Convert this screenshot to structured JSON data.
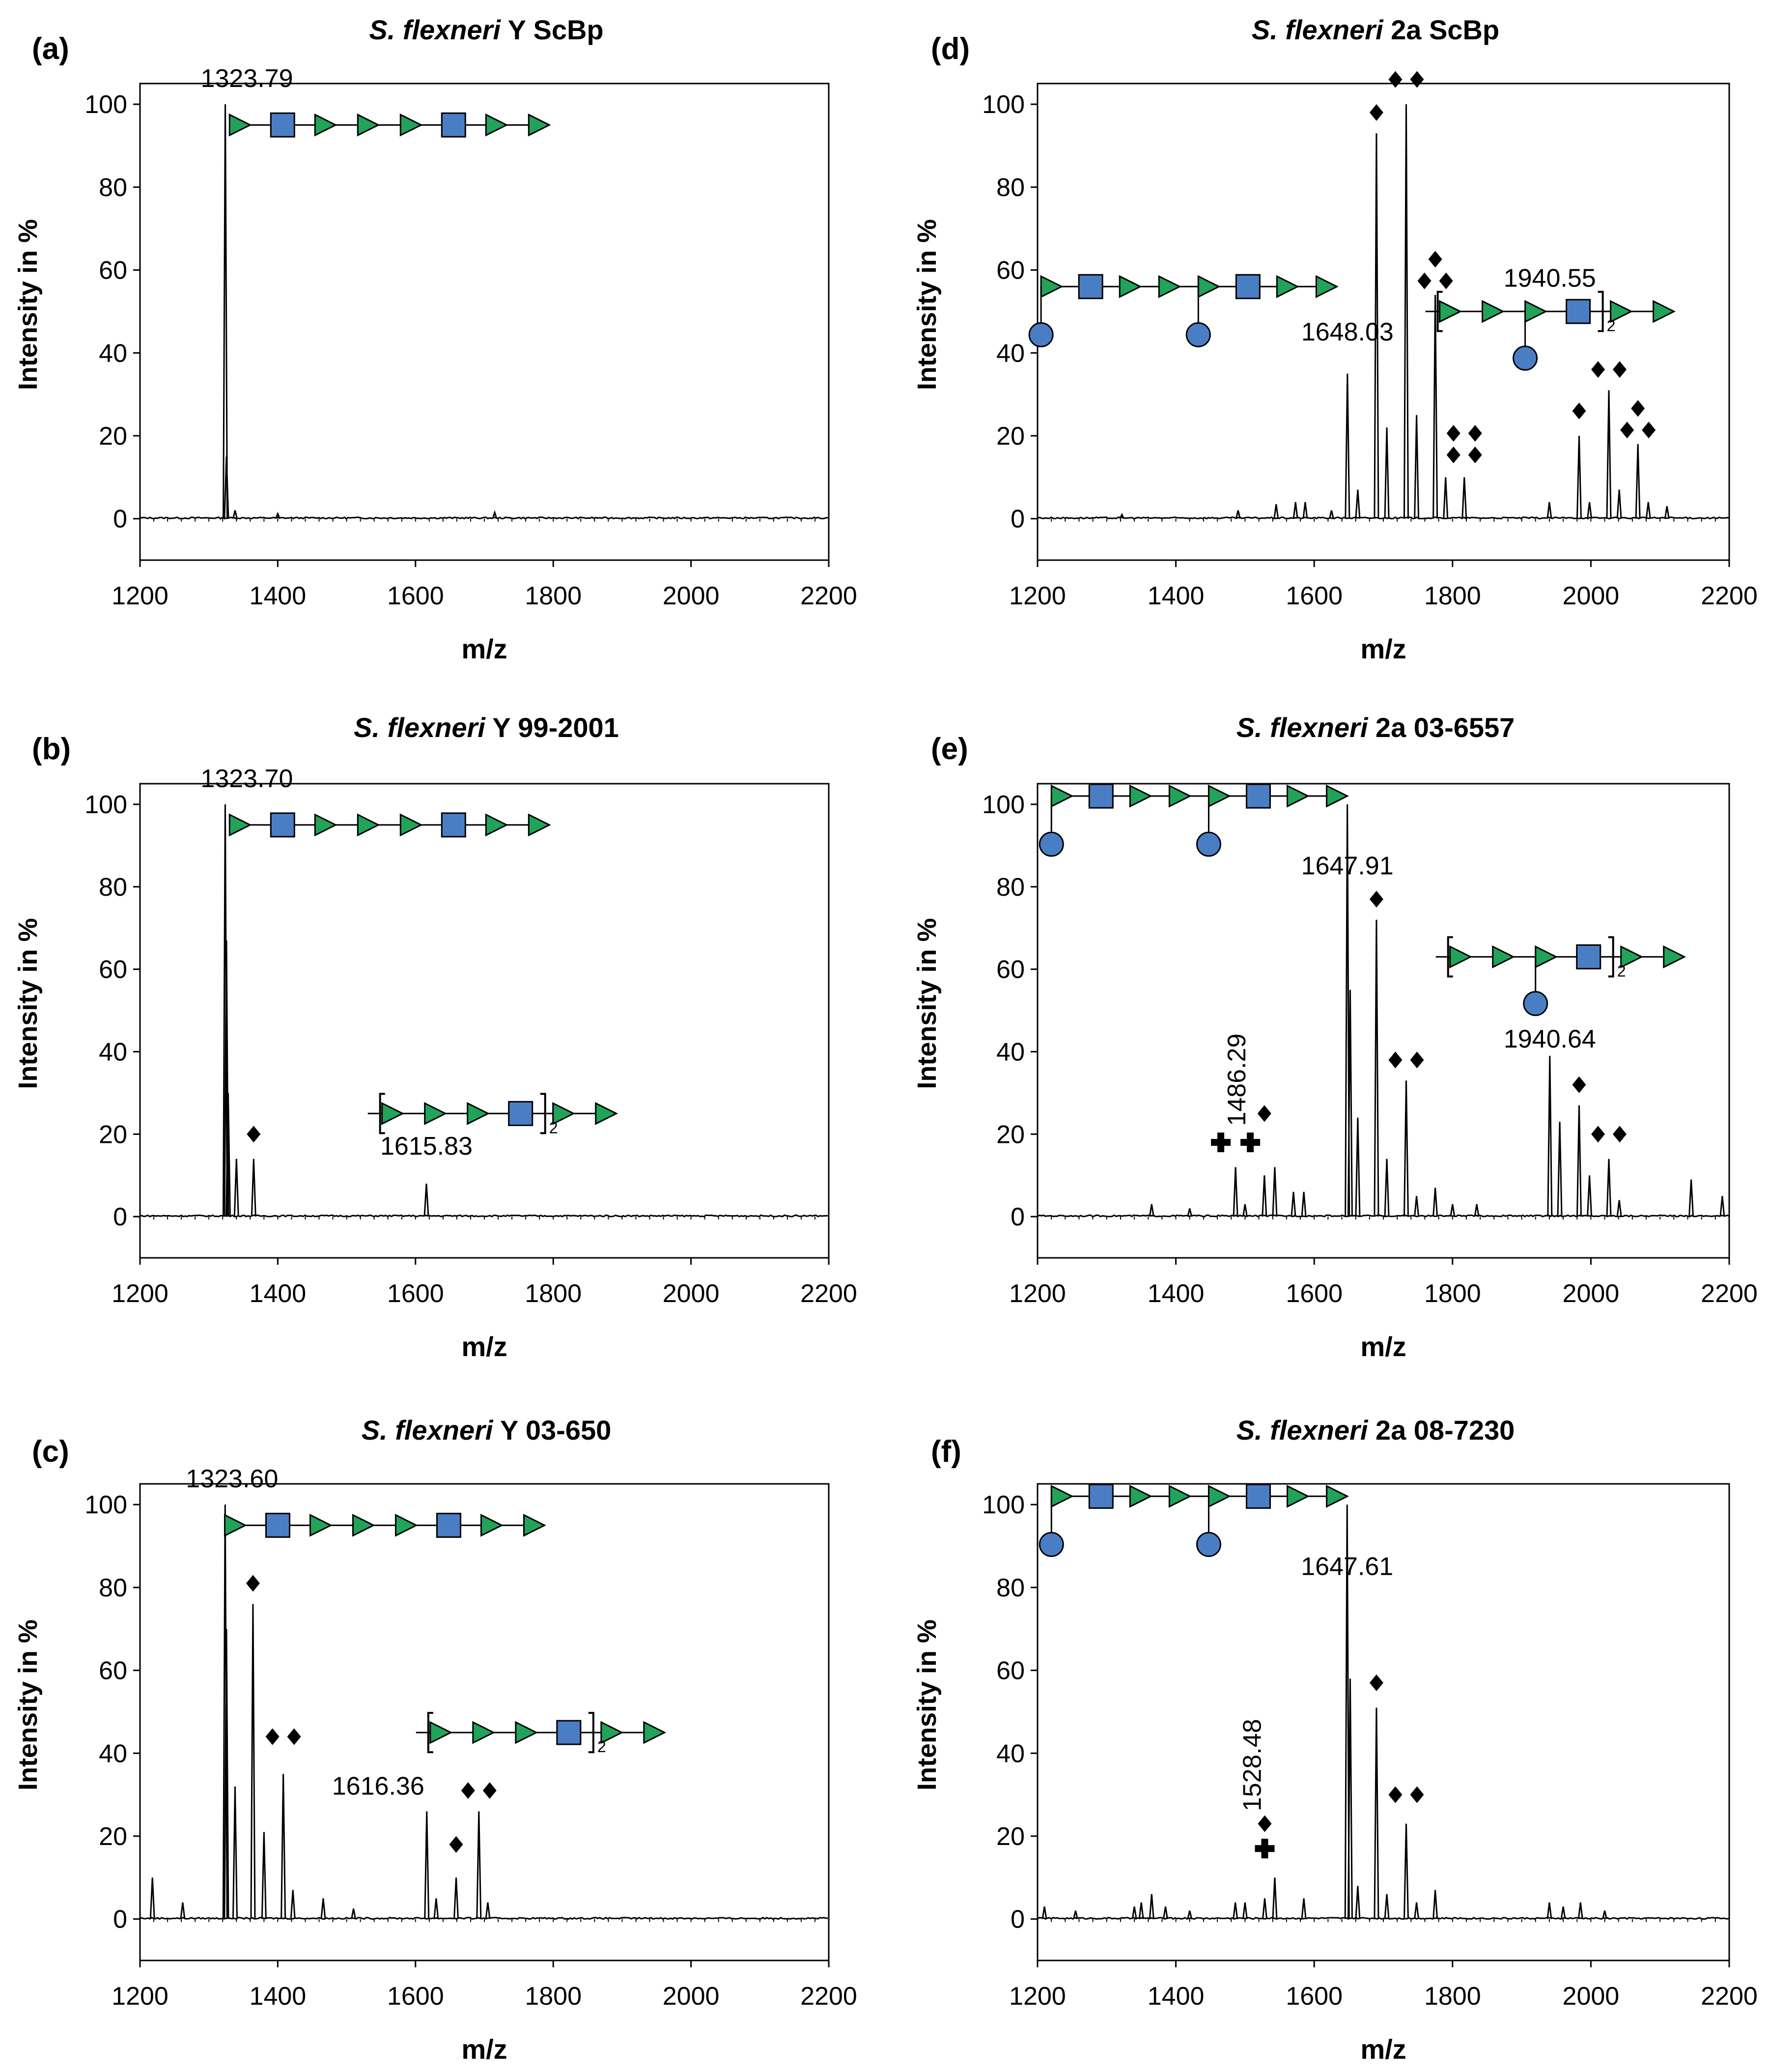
{
  "chart_data": [
    {
      "type": "line",
      "panel": "(a)",
      "title_italic": "S. flexneri",
      "title_rest": " Y ScBp",
      "xlabel": "m/z",
      "ylabel": "Intensity in %",
      "xlim": [
        1200,
        2200
      ],
      "ylim": [
        -10,
        105
      ],
      "xticks": [
        "1200",
        "1400",
        "1600",
        "1800",
        "2000",
        "2200"
      ],
      "yticks": [
        "0",
        "20",
        "40",
        "60",
        "80",
        "100"
      ],
      "peaks": [
        {
          "x": 1323.79,
          "y": 100
        },
        {
          "x": 1325.5,
          "y": 15
        },
        {
          "x": 1338,
          "y": 2
        },
        {
          "x": 1400,
          "y": 1.2
        },
        {
          "x": 1715,
          "y": 1.5
        }
      ],
      "annotations": [
        {
          "text": "1323.79",
          "x": 1323.79,
          "y": 100,
          "kind": "label",
          "dx": -50,
          "dy": -35,
          "anchor": "start"
        },
        {
          "text": "",
          "x": 1345,
          "y": 95,
          "kind": "glycan",
          "glycan": "linear"
        }
      ]
    },
    {
      "type": "line",
      "panel": "(b)",
      "title_italic": "S. flexneri",
      "title_rest": " Y 99-2001",
      "xlabel": "m/z",
      "ylabel": "Intensity in %",
      "xlim": [
        1200,
        2200
      ],
      "ylim": [
        -10,
        105
      ],
      "xticks": [
        "1200",
        "1400",
        "1600",
        "1800",
        "2000",
        "2200"
      ],
      "yticks": [
        "0",
        "20",
        "40",
        "60",
        "80",
        "100"
      ],
      "peaks": [
        {
          "x": 1323.7,
          "y": 100
        },
        {
          "x": 1325.5,
          "y": 67
        },
        {
          "x": 1328,
          "y": 30
        },
        {
          "x": 1340,
          "y": 14
        },
        {
          "x": 1365,
          "y": 14
        },
        {
          "x": 1615.83,
          "y": 8
        }
      ],
      "annotations": [
        {
          "text": "1323.70",
          "x": 1323.7,
          "y": 100,
          "kind": "label",
          "dx": -50,
          "dy": -35,
          "anchor": "start"
        },
        {
          "text": "",
          "x": 1345,
          "y": 95,
          "kind": "glycan",
          "glycan": "linear"
        },
        {
          "text": "",
          "x": 1365,
          "y": 20,
          "kind": "diamond",
          "n": 1
        },
        {
          "text": "1615.83",
          "x": 1615.83,
          "y": 15,
          "kind": "label",
          "dx": 0,
          "dy": 0,
          "anchor": "middle"
        },
        {
          "text": "2",
          "x": 1545,
          "y": 25,
          "kind": "glycan",
          "glycan": "bracket"
        }
      ]
    },
    {
      "type": "line",
      "panel": "(c)",
      "title_italic": "S. flexneri",
      "title_rest": " Y 03-650",
      "xlabel": "m/z",
      "ylabel": "Intensity in %",
      "xlim": [
        1200,
        2200
      ],
      "ylim": [
        -10,
        105
      ],
      "xticks": [
        "1200",
        "1400",
        "1600",
        "1800",
        "2000",
        "2200"
      ],
      "yticks": [
        "0",
        "20",
        "40",
        "60",
        "80",
        "100"
      ],
      "peaks": [
        {
          "x": 1218,
          "y": 10
        },
        {
          "x": 1262,
          "y": 4
        },
        {
          "x": 1323.6,
          "y": 100
        },
        {
          "x": 1325.5,
          "y": 70
        },
        {
          "x": 1338,
          "y": 32
        },
        {
          "x": 1364,
          "y": 76
        },
        {
          "x": 1380,
          "y": 21
        },
        {
          "x": 1408,
          "y": 35
        },
        {
          "x": 1422,
          "y": 7
        },
        {
          "x": 1466,
          "y": 5
        },
        {
          "x": 1510,
          "y": 2.5
        },
        {
          "x": 1616.36,
          "y": 26
        },
        {
          "x": 1630,
          "y": 5
        },
        {
          "x": 1659,
          "y": 10
        },
        {
          "x": 1692,
          "y": 26
        },
        {
          "x": 1705,
          "y": 4
        }
      ],
      "annotations": [
        {
          "text": "1323.60",
          "x": 1323.6,
          "y": 100,
          "kind": "label",
          "dx": -80,
          "dy": -35,
          "anchor": "start"
        },
        {
          "text": "",
          "x": 1338,
          "y": 95,
          "kind": "glycan",
          "glycan": "linear"
        },
        {
          "text": "",
          "x": 1364,
          "y": 81,
          "kind": "diamond",
          "n": 1
        },
        {
          "text": "",
          "x": 1408,
          "y": 44,
          "kind": "diamond",
          "n": 2
        },
        {
          "text": "1616.36",
          "x": 1616.36,
          "y": 30,
          "kind": "label",
          "dx": -5,
          "dy": 0,
          "anchor": "end"
        },
        {
          "text": "",
          "x": 1659,
          "y": 18,
          "kind": "diamond",
          "n": 1
        },
        {
          "text": "",
          "x": 1692,
          "y": 31,
          "kind": "diamond",
          "n": 2
        },
        {
          "text": "2",
          "x": 1615,
          "y": 45,
          "kind": "glycan",
          "glycan": "bracket"
        }
      ]
    },
    {
      "type": "line",
      "panel": "(d)",
      "title_italic": "S. flexneri",
      "title_rest": " 2a ScBp",
      "xlabel": "m/z",
      "ylabel": "Intensity in %",
      "xlim": [
        1200,
        2200
      ],
      "ylim": [
        -10,
        105
      ],
      "xticks": [
        "1200",
        "1400",
        "1600",
        "1800",
        "2000",
        "2200"
      ],
      "yticks": [
        "0",
        "20",
        "40",
        "60",
        "80",
        "100"
      ],
      "peaks": [
        {
          "x": 1322,
          "y": 1
        },
        {
          "x": 1490,
          "y": 2
        },
        {
          "x": 1545,
          "y": 3.5
        },
        {
          "x": 1573,
          "y": 4
        },
        {
          "x": 1587,
          "y": 4
        },
        {
          "x": 1625,
          "y": 2
        },
        {
          "x": 1648.03,
          "y": 35
        },
        {
          "x": 1663,
          "y": 7
        },
        {
          "x": 1690,
          "y": 93
        },
        {
          "x": 1705,
          "y": 22
        },
        {
          "x": 1733,
          "y": 100
        },
        {
          "x": 1748,
          "y": 25
        },
        {
          "x": 1775,
          "y": 54
        },
        {
          "x": 1790,
          "y": 10
        },
        {
          "x": 1817,
          "y": 10
        },
        {
          "x": 1940,
          "y": 4
        },
        {
          "x": 1983,
          "y": 20
        },
        {
          "x": 1998,
          "y": 4
        },
        {
          "x": 2026,
          "y": 31
        },
        {
          "x": 2041,
          "y": 7
        },
        {
          "x": 2068,
          "y": 18
        },
        {
          "x": 2083,
          "y": 4
        },
        {
          "x": 2110,
          "y": 3
        }
      ],
      "annotations": [
        {
          "text": "",
          "x": 1690,
          "y": 98,
          "kind": "diamond",
          "n": 1
        },
        {
          "text": "",
          "x": 1733,
          "y": 106,
          "kind": "diamond",
          "n": 2
        },
        {
          "text": "",
          "x": 1775,
          "y": 60,
          "kind": "diamond",
          "n": 3
        },
        {
          "text": "",
          "x": 1817,
          "y": 18,
          "kind": "diamond",
          "n": 4
        },
        {
          "text": "",
          "x": 1983,
          "y": 26,
          "kind": "diamond",
          "n": 1
        },
        {
          "text": "",
          "x": 2026,
          "y": 36,
          "kind": "diamond",
          "n": 2
        },
        {
          "text": "",
          "x": 2068,
          "y": 24,
          "kind": "diamond",
          "n": 3
        },
        {
          "text": "1648.03",
          "x": 1648.03,
          "y": 43,
          "kind": "label",
          "dx": 0,
          "dy": 0,
          "anchor": "middle"
        },
        {
          "text": "1940.55",
          "x": 1940.55,
          "y": 56,
          "kind": "label",
          "dx": 0,
          "dy": 0,
          "anchor": "middle"
        },
        {
          "text": "",
          "x": 1220,
          "y": 56,
          "kind": "glycan",
          "glycan": "branched"
        },
        {
          "text": "2",
          "x": 1775,
          "y": 50,
          "kind": "glycan",
          "glycan": "bracket-branch"
        }
      ]
    },
    {
      "type": "line",
      "panel": "(e)",
      "title_italic": "S. flexneri",
      "title_rest": " 2a 03-6557",
      "xlabel": "m/z",
      "ylabel": "Intensity in %",
      "xlim": [
        1200,
        2200
      ],
      "ylim": [
        -10,
        105
      ],
      "xticks": [
        "1200",
        "1400",
        "1600",
        "1800",
        "2000",
        "2200"
      ],
      "yticks": [
        "0",
        "20",
        "40",
        "60",
        "80",
        "100"
      ],
      "peaks": [
        {
          "x": 1365,
          "y": 3
        },
        {
          "x": 1420,
          "y": 2
        },
        {
          "x": 1486.29,
          "y": 12
        },
        {
          "x": 1500,
          "y": 3
        },
        {
          "x": 1528,
          "y": 10
        },
        {
          "x": 1543,
          "y": 12
        },
        {
          "x": 1570,
          "y": 6
        },
        {
          "x": 1585,
          "y": 6
        },
        {
          "x": 1647.91,
          "y": 100
        },
        {
          "x": 1652,
          "y": 55
        },
        {
          "x": 1663,
          "y": 24
        },
        {
          "x": 1690,
          "y": 72
        },
        {
          "x": 1705,
          "y": 14
        },
        {
          "x": 1733,
          "y": 33
        },
        {
          "x": 1748,
          "y": 5
        },
        {
          "x": 1775,
          "y": 7
        },
        {
          "x": 1800,
          "y": 3
        },
        {
          "x": 1835,
          "y": 3
        },
        {
          "x": 1940.64,
          "y": 39
        },
        {
          "x": 1955,
          "y": 23
        },
        {
          "x": 1983,
          "y": 27
        },
        {
          "x": 1998,
          "y": 10
        },
        {
          "x": 2026,
          "y": 14
        },
        {
          "x": 2041,
          "y": 4
        },
        {
          "x": 2145,
          "y": 9
        },
        {
          "x": 2190,
          "y": 5
        }
      ],
      "annotations": [
        {
          "text": "",
          "x": 1690,
          "y": 77,
          "kind": "diamond",
          "n": 1
        },
        {
          "text": "",
          "x": 1733,
          "y": 38,
          "kind": "diamond",
          "n": 2
        },
        {
          "text": "",
          "x": 1983,
          "y": 32,
          "kind": "diamond",
          "n": 1
        },
        {
          "text": "",
          "x": 2026,
          "y": 20,
          "kind": "diamond",
          "n": 2
        },
        {
          "text": "",
          "x": 1528,
          "y": 25,
          "kind": "diamond",
          "n": 1
        },
        {
          "text": "",
          "x": 1486.29,
          "y": 18,
          "kind": "cross",
          "n": 2
        },
        {
          "text": "1486.29",
          "x": 1486.29,
          "y": 22,
          "kind": "label-rot",
          "dx": 0,
          "dy": 0,
          "anchor": "start"
        },
        {
          "text": "1647.91",
          "x": 1647.91,
          "y": 83,
          "kind": "label",
          "dx": 0,
          "dy": 0,
          "anchor": "middle"
        },
        {
          "text": "1940.64",
          "x": 1940.64,
          "y": 41,
          "kind": "label",
          "dx": 0,
          "dy": 0,
          "anchor": "middle"
        },
        {
          "text": "",
          "x": 1235,
          "y": 102,
          "kind": "glycan",
          "glycan": "branched"
        },
        {
          "text": "2",
          "x": 1790,
          "y": 63,
          "kind": "glycan",
          "glycan": "bracket-branch"
        }
      ]
    },
    {
      "type": "line",
      "panel": "(f)",
      "title_italic": "S. flexneri",
      "title_rest": " 2a 08-7230",
      "xlabel": "m/z",
      "ylabel": "Intensity in %",
      "xlim": [
        1200,
        2200
      ],
      "ylim": [
        -10,
        105
      ],
      "xticks": [
        "1200",
        "1400",
        "1600",
        "1800",
        "2000",
        "2200"
      ],
      "yticks": [
        "0",
        "20",
        "40",
        "60",
        "80",
        "100"
      ],
      "peaks": [
        {
          "x": 1210,
          "y": 3
        },
        {
          "x": 1255,
          "y": 2
        },
        {
          "x": 1340,
          "y": 3
        },
        {
          "x": 1350,
          "y": 4
        },
        {
          "x": 1365,
          "y": 6
        },
        {
          "x": 1385,
          "y": 3
        },
        {
          "x": 1420,
          "y": 2
        },
        {
          "x": 1486,
          "y": 4
        },
        {
          "x": 1500,
          "y": 4
        },
        {
          "x": 1528.48,
          "y": 5
        },
        {
          "x": 1543,
          "y": 10
        },
        {
          "x": 1585,
          "y": 5
        },
        {
          "x": 1647.61,
          "y": 100
        },
        {
          "x": 1652,
          "y": 58
        },
        {
          "x": 1663,
          "y": 8
        },
        {
          "x": 1690,
          "y": 51
        },
        {
          "x": 1705,
          "y": 6
        },
        {
          "x": 1733,
          "y": 23
        },
        {
          "x": 1748,
          "y": 4
        },
        {
          "x": 1775,
          "y": 7
        },
        {
          "x": 1940,
          "y": 4
        },
        {
          "x": 1960,
          "y": 3
        },
        {
          "x": 1985,
          "y": 4
        },
        {
          "x": 2020,
          "y": 2
        }
      ],
      "annotations": [
        {
          "text": "",
          "x": 1690,
          "y": 57,
          "kind": "diamond",
          "n": 1
        },
        {
          "text": "",
          "x": 1733,
          "y": 30,
          "kind": "diamond",
          "n": 2
        },
        {
          "text": "",
          "x": 1528.48,
          "y": 23,
          "kind": "diamond",
          "n": 1
        },
        {
          "text": "",
          "x": 1528.48,
          "y": 17,
          "kind": "cross",
          "n": 1
        },
        {
          "text": "1528.48",
          "x": 1528.48,
          "y": 26,
          "kind": "label-rot",
          "dx": -28,
          "dy": 0,
          "anchor": "start"
        },
        {
          "text": "1647.61",
          "x": 1647.61,
          "y": 83,
          "kind": "label",
          "dx": 0,
          "dy": 0,
          "anchor": "middle"
        },
        {
          "text": "",
          "x": 1235,
          "y": 102,
          "kind": "glycan",
          "glycan": "branched"
        }
      ]
    }
  ]
}
